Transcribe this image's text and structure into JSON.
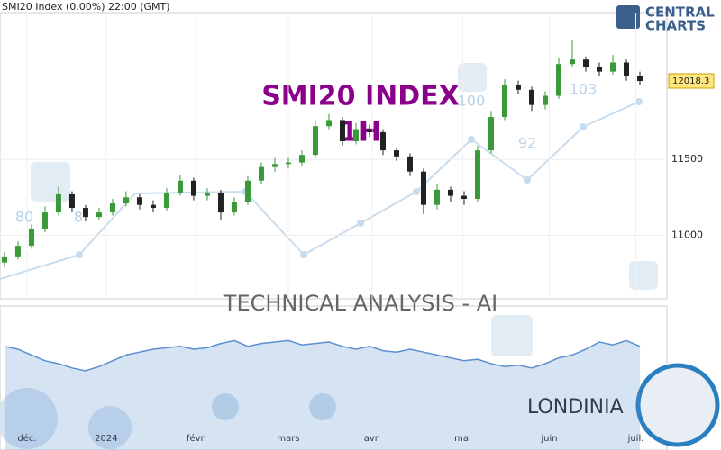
{
  "chart_data": {
    "type": "candlestick",
    "header": "SMI20 Index  (0.00%)  22:00 (GMT)",
    "title": "SMI20 INDEX",
    "subtitle": "1H",
    "watermark": "TECHNICAL  ANALYSIS - AI",
    "brand": [
      "CENTRAL",
      "CHARTS"
    ],
    "footer_brand": "LONDINIA",
    "annotations": [
      "80",
      "8",
      "100",
      "92",
      "103"
    ],
    "x": [
      0,
      1,
      2,
      3,
      4,
      5,
      6,
      7,
      8,
      9,
      10,
      11,
      12,
      13,
      14,
      15,
      16,
      17,
      18,
      19,
      20,
      21,
      22,
      23,
      24,
      25,
      26,
      27,
      28,
      29,
      30,
      31,
      32,
      33,
      34,
      35,
      36,
      37,
      38,
      39,
      40,
      41,
      42,
      43,
      44,
      45,
      46,
      47
    ],
    "open": [
      10820,
      10860,
      10930,
      11040,
      11150,
      11270,
      11180,
      11120,
      11150,
      11210,
      11250,
      11200,
      11180,
      11280,
      11360,
      11260,
      11280,
      11150,
      11220,
      11360,
      11450,
      11470,
      11480,
      11530,
      11720,
      11760,
      11620,
      11700,
      11680,
      11560,
      11520,
      11420,
      11200,
      11300,
      11260,
      11240,
      11560,
      11780,
      11990,
      11960,
      11860,
      11920,
      12130,
      12160,
      12110,
      12080,
      12140,
      12050
    ],
    "high": [
      10890,
      10960,
      11070,
      11190,
      11320,
      11290,
      11200,
      11180,
      11240,
      11290,
      11270,
      11230,
      11310,
      11400,
      11380,
      11310,
      11300,
      11250,
      11390,
      11480,
      11510,
      11510,
      11560,
      11760,
      11800,
      11780,
      11740,
      11730,
      11700,
      11580,
      11540,
      11440,
      11340,
      11320,
      11290,
      11590,
      11820,
      12030,
      12020,
      11980,
      11950,
      12170,
      12290,
      12180,
      12140,
      12190,
      12160,
      12080
    ],
    "low": [
      10790,
      10840,
      10910,
      11020,
      11130,
      11150,
      11090,
      11100,
      11130,
      11190,
      11170,
      11150,
      11160,
      11260,
      11230,
      11230,
      11100,
      11130,
      11200,
      11340,
      11420,
      11440,
      11460,
      11510,
      11700,
      11590,
      11600,
      11650,
      11530,
      11490,
      11390,
      11140,
      11170,
      11220,
      11200,
      11220,
      11540,
      11760,
      11930,
      11820,
      11830,
      11900,
      12110,
      12080,
      12050,
      12060,
      12020,
      11990
    ],
    "close": [
      10860,
      10930,
      11040,
      11150,
      11270,
      11180,
      11120,
      11150,
      11210,
      11250,
      11200,
      11180,
      11280,
      11360,
      11260,
      11280,
      11150,
      11220,
      11360,
      11450,
      11470,
      11480,
      11530,
      11720,
      11760,
      11620,
      11700,
      11680,
      11560,
      11520,
      11420,
      11200,
      11300,
      11260,
      11240,
      11560,
      11780,
      11990,
      11960,
      11860,
      11920,
      12130,
      12160,
      12110,
      12080,
      12140,
      12050,
      12018.3
    ],
    "up_color": "#3a9a3a",
    "down_color": "#222222",
    "xlim": [
      -0.33,
      49
    ],
    "ylim": [
      10580,
      12470
    ],
    "yticks": [
      11000,
      11500
    ],
    "xticks": [
      {
        "value": 1.67,
        "label": "déc."
      },
      {
        "value": 7.53,
        "label": "2024"
      },
      {
        "value": 14.2,
        "label": "févr."
      },
      {
        "value": 21,
        "label": "mars"
      },
      {
        "value": 27.2,
        "label": "avr."
      },
      {
        "value": 33.9,
        "label": "mai"
      },
      {
        "value": 40.3,
        "label": "juin"
      },
      {
        "value": 46.7,
        "label": "juil."
      }
    ],
    "grid": true,
    "indicator": {
      "values": [
        72,
        70,
        66,
        62,
        60,
        57,
        55,
        58,
        62,
        66,
        68,
        70,
        71,
        72,
        70,
        71,
        74,
        76,
        72,
        74,
        75,
        76,
        73,
        74,
        75,
        72,
        70,
        72,
        69,
        68,
        70,
        68,
        66,
        64,
        62,
        63,
        60,
        58,
        59,
        57,
        60,
        64,
        66,
        70,
        75,
        73,
        76,
        72
      ],
      "ylim": [
        0,
        100
      ],
      "color": "#5b8fd0"
    }
  }
}
